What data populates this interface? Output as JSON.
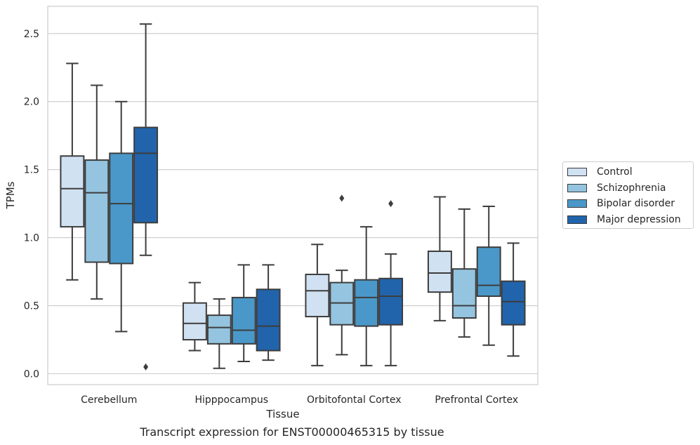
{
  "chart_data": {
    "type": "box",
    "title": "Transcript expression for ENST00000465315 by tissue",
    "xlabel": "Tissue",
    "ylabel": "TPMs",
    "ylim": [
      -0.08,
      2.7
    ],
    "yticks": [
      "0.0",
      "0.5",
      "1.0",
      "1.5",
      "2.0",
      "2.5"
    ],
    "ytick_values": [
      0,
      0.5,
      1.0,
      1.5,
      2.0,
      2.5
    ],
    "grid": true,
    "legend_position": "right",
    "categories": [
      "Cerebellum",
      "Hipppocampus",
      "Orbitofontal Cortex",
      "Prefrontal Cortex"
    ],
    "series": [
      {
        "name": "Control",
        "color": "#d0e1f2",
        "boxes": [
          {
            "whislo": 0.69,
            "q1": 1.08,
            "med": 1.36,
            "q3": 1.6,
            "whishi": 2.28,
            "fliers": []
          },
          {
            "whislo": 0.17,
            "q1": 0.25,
            "med": 0.37,
            "q3": 0.52,
            "whishi": 0.67,
            "fliers": []
          },
          {
            "whislo": 0.06,
            "q1": 0.42,
            "med": 0.61,
            "q3": 0.73,
            "whishi": 0.95,
            "fliers": []
          },
          {
            "whislo": 0.39,
            "q1": 0.6,
            "med": 0.74,
            "q3": 0.9,
            "whishi": 1.3,
            "fliers": []
          }
        ]
      },
      {
        "name": "Schizophrenia",
        "color": "#94c4df",
        "boxes": [
          {
            "whislo": 0.55,
            "q1": 0.82,
            "med": 1.33,
            "q3": 1.57,
            "whishi": 2.12,
            "fliers": []
          },
          {
            "whislo": 0.04,
            "q1": 0.22,
            "med": 0.34,
            "q3": 0.43,
            "whishi": 0.55,
            "fliers": []
          },
          {
            "whislo": 0.14,
            "q1": 0.36,
            "med": 0.52,
            "q3": 0.67,
            "whishi": 0.76,
            "fliers": [
              1.29
            ]
          },
          {
            "whislo": 0.27,
            "q1": 0.41,
            "med": 0.5,
            "q3": 0.77,
            "whishi": 1.21,
            "fliers": []
          }
        ]
      },
      {
        "name": "Bipolar disorder",
        "color": "#4a98c9",
        "boxes": [
          {
            "whislo": 0.31,
            "q1": 0.81,
            "med": 1.25,
            "q3": 1.62,
            "whishi": 2.0,
            "fliers": []
          },
          {
            "whislo": 0.09,
            "q1": 0.22,
            "med": 0.32,
            "q3": 0.56,
            "whishi": 0.8,
            "fliers": []
          },
          {
            "whislo": 0.06,
            "q1": 0.35,
            "med": 0.56,
            "q3": 0.69,
            "whishi": 1.08,
            "fliers": []
          },
          {
            "whislo": 0.21,
            "q1": 0.57,
            "med": 0.65,
            "q3": 0.93,
            "whishi": 1.23,
            "fliers": []
          }
        ]
      },
      {
        "name": "Major depression",
        "color": "#2164ab",
        "boxes": [
          {
            "whislo": 0.87,
            "q1": 1.11,
            "med": 1.62,
            "q3": 1.81,
            "whishi": 2.57,
            "fliers": [
              0.05
            ]
          },
          {
            "whislo": 0.1,
            "q1": 0.17,
            "med": 0.35,
            "q3": 0.62,
            "whishi": 0.8,
            "fliers": []
          },
          {
            "whislo": 0.06,
            "q1": 0.36,
            "med": 0.57,
            "q3": 0.7,
            "whishi": 0.88,
            "fliers": [
              1.25
            ]
          },
          {
            "whislo": 0.13,
            "q1": 0.36,
            "med": 0.53,
            "q3": 0.68,
            "whishi": 0.96,
            "fliers": []
          }
        ]
      }
    ]
  }
}
